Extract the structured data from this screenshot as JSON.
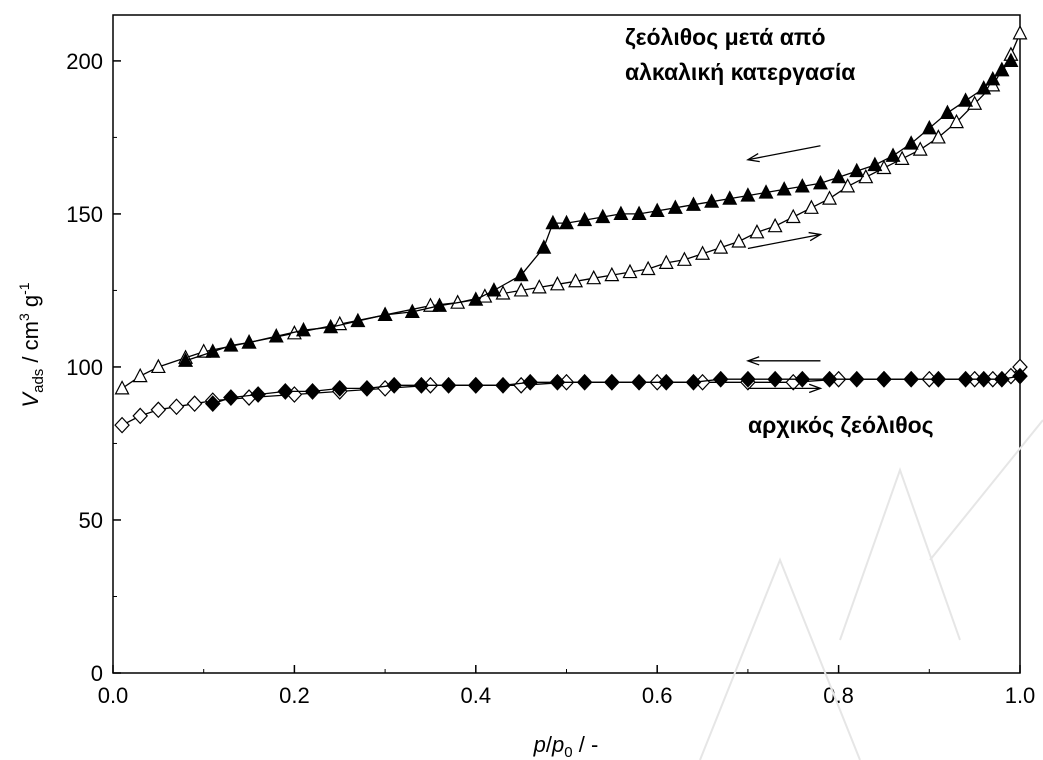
{
  "chart_data": {
    "type": "scatter",
    "xlabel": {
      "main": "p",
      "sep": "/",
      "main2": "p",
      "sub": "0",
      "unit": " / -"
    },
    "ylabel": {
      "main": "V",
      "sub": "ads",
      "unit": " / cm",
      "sup1": "3",
      "unit2": " g",
      "sup2": "-1"
    },
    "xlim": [
      0,
      1
    ],
    "ylim": [
      0,
      215
    ],
    "xticks": [
      "0.0",
      "0.2",
      "0.4",
      "0.6",
      "0.8",
      "1.0"
    ],
    "yticks": [
      "0",
      "50",
      "100",
      "150",
      "200"
    ],
    "xtick_values": [
      0,
      0.2,
      0.4,
      0.6,
      0.8,
      1.0
    ],
    "ytick_values": [
      0,
      50,
      100,
      150,
      200
    ],
    "grid": false,
    "annotations": {
      "treated_line1": "ζεόλιθος μετά από",
      "treated_line2": "αλκαλική κατεργασία",
      "parent": "αρχικός ζεόλιθος"
    },
    "series": [
      {
        "marker": "triangle-open",
        "x": [
          0.01,
          0.03,
          0.05,
          0.08,
          0.1,
          0.15,
          0.2,
          0.25,
          0.3,
          0.35,
          0.38,
          0.41,
          0.43,
          0.45,
          0.47,
          0.49,
          0.51,
          0.53,
          0.55,
          0.57,
          0.59,
          0.61,
          0.63,
          0.65,
          0.67,
          0.69,
          0.71,
          0.73,
          0.75,
          0.77,
          0.79,
          0.81,
          0.83,
          0.85,
          0.87,
          0.89,
          0.91,
          0.93,
          0.95,
          0.97,
          0.98,
          0.99,
          1.0
        ],
        "y": [
          93,
          97,
          100,
          103,
          105,
          108,
          111,
          114,
          117,
          120,
          121,
          123,
          124,
          125,
          126,
          127,
          128,
          129,
          130,
          131,
          132,
          134,
          135,
          137,
          139,
          141,
          144,
          146,
          149,
          152,
          155,
          159,
          162,
          165,
          168,
          171,
          175,
          180,
          186,
          192,
          197,
          202,
          209
        ]
      },
      {
        "marker": "triangle-filled",
        "x": [
          0.99,
          0.98,
          0.97,
          0.96,
          0.94,
          0.92,
          0.9,
          0.88,
          0.86,
          0.84,
          0.82,
          0.8,
          0.78,
          0.76,
          0.74,
          0.72,
          0.7,
          0.68,
          0.66,
          0.64,
          0.62,
          0.6,
          0.58,
          0.56,
          0.54,
          0.52,
          0.5,
          0.485,
          0.475,
          0.45,
          0.42,
          0.4,
          0.36,
          0.33,
          0.3,
          0.27,
          0.24,
          0.21,
          0.18,
          0.15,
          0.13,
          0.11,
          0.08
        ],
        "y": [
          200,
          197,
          194,
          191,
          187,
          183,
          178,
          173,
          169,
          166,
          164,
          162,
          160,
          159,
          158,
          157,
          156,
          155,
          154,
          153,
          152,
          151,
          150,
          150,
          149,
          148,
          147,
          147,
          139,
          130,
          125,
          122,
          120,
          118,
          117,
          115,
          113,
          112,
          110,
          108,
          107,
          105,
          102
        ]
      },
      {
        "marker": "diamond-open",
        "x": [
          0.01,
          0.03,
          0.05,
          0.07,
          0.09,
          0.11,
          0.15,
          0.2,
          0.25,
          0.3,
          0.35,
          0.4,
          0.45,
          0.5,
          0.55,
          0.6,
          0.65,
          0.7,
          0.75,
          0.8,
          0.85,
          0.9,
          0.95,
          0.97,
          0.99,
          1.0
        ],
        "y": [
          81,
          84,
          86,
          87,
          88,
          89,
          90,
          91,
          92,
          93,
          94,
          94,
          94,
          95,
          95,
          95,
          95,
          95,
          95,
          96,
          96,
          96,
          96,
          96,
          97,
          100
        ]
      },
      {
        "marker": "diamond-filled",
        "x": [
          1.0,
          0.98,
          0.96,
          0.94,
          0.91,
          0.88,
          0.85,
          0.82,
          0.79,
          0.76,
          0.73,
          0.7,
          0.67,
          0.64,
          0.61,
          0.58,
          0.55,
          0.52,
          0.49,
          0.46,
          0.43,
          0.4,
          0.37,
          0.34,
          0.31,
          0.28,
          0.25,
          0.22,
          0.19,
          0.16,
          0.13,
          0.11
        ],
        "y": [
          97,
          96,
          96,
          96,
          96,
          96,
          96,
          96,
          96,
          96,
          96,
          96,
          96,
          95,
          95,
          95,
          95,
          95,
          95,
          95,
          94,
          94,
          94,
          94,
          94,
          93,
          93,
          92,
          92,
          91,
          90,
          88
        ]
      }
    ],
    "arrows": [
      {
        "direction": "left",
        "x": [
          0.7,
          0.78
        ],
        "y": 170
      },
      {
        "direction": "right",
        "x": [
          0.7,
          0.78
        ],
        "y": 141
      },
      {
        "direction": "left",
        "x": [
          0.7,
          0.78
        ],
        "y": 102
      },
      {
        "direction": "right",
        "x": [
          0.7,
          0.78
        ],
        "y": 93
      }
    ]
  }
}
